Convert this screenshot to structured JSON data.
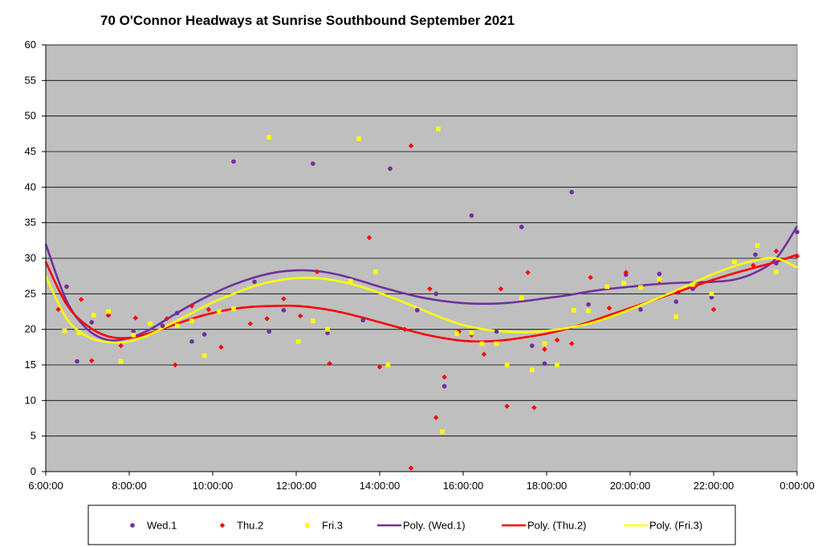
{
  "chart_data": {
    "type": "scatter",
    "title": "70 O'Connor Headways at Sunrise Southbound September 2021",
    "xlabel": "",
    "ylabel": "",
    "x_unit": "hours",
    "xlim": [
      6,
      24
    ],
    "ylim": [
      0,
      60
    ],
    "y_ticks": [
      0,
      5,
      10,
      15,
      20,
      25,
      30,
      35,
      40,
      45,
      50,
      55,
      60
    ],
    "x_ticks": [
      6,
      8,
      10,
      12,
      14,
      16,
      18,
      20,
      22,
      24
    ],
    "x_tick_labels": [
      "6:00:00",
      "8:00:00",
      "10:00:00",
      "12:00:00",
      "14:00:00",
      "16:00:00",
      "18:00:00",
      "20:00:00",
      "22:00:00",
      "0:00:00"
    ],
    "grid": "horizontal",
    "legend_position": "bottom",
    "series": [
      {
        "name": "Wed.1",
        "marker": "circle",
        "color": "#7030A0",
        "points": [
          [
            6.5,
            26.0
          ],
          [
            6.75,
            15.5
          ],
          [
            7.1,
            21.0
          ],
          [
            7.5,
            22.0
          ],
          [
            8.1,
            19.7
          ],
          [
            8.8,
            20.5
          ],
          [
            9.15,
            22.3
          ],
          [
            9.5,
            18.3
          ],
          [
            9.8,
            19.3
          ],
          [
            10.5,
            43.6
          ],
          [
            11.0,
            26.7
          ],
          [
            11.35,
            19.7
          ],
          [
            11.7,
            22.7
          ],
          [
            12.4,
            43.3
          ],
          [
            12.75,
            19.5
          ],
          [
            13.6,
            21.3
          ],
          [
            14.25,
            42.6
          ],
          [
            14.9,
            22.7
          ],
          [
            15.35,
            25.0
          ],
          [
            15.55,
            12.0
          ],
          [
            16.2,
            36.0
          ],
          [
            16.8,
            19.7
          ],
          [
            17.4,
            34.4
          ],
          [
            17.65,
            17.7
          ],
          [
            17.95,
            15.2
          ],
          [
            18.6,
            39.3
          ],
          [
            19.0,
            23.5
          ],
          [
            19.9,
            27.7
          ],
          [
            20.25,
            22.8
          ],
          [
            20.7,
            27.8
          ],
          [
            21.1,
            23.9
          ],
          [
            21.5,
            25.7
          ],
          [
            21.95,
            24.5
          ],
          [
            23.0,
            30.5
          ],
          [
            23.5,
            29.3
          ],
          [
            24.0,
            33.7
          ]
        ]
      },
      {
        "name": "Thu.2",
        "marker": "diamond",
        "color": "#FF0000",
        "points": [
          [
            6.3,
            22.8
          ],
          [
            6.85,
            24.2
          ],
          [
            7.1,
            15.6
          ],
          [
            7.5,
            22.0
          ],
          [
            7.8,
            17.7
          ],
          [
            8.15,
            21.6
          ],
          [
            8.9,
            21.5
          ],
          [
            9.1,
            15.0
          ],
          [
            9.5,
            23.3
          ],
          [
            9.9,
            22.8
          ],
          [
            10.2,
            17.5
          ],
          [
            10.9,
            20.8
          ],
          [
            11.3,
            21.5
          ],
          [
            11.7,
            24.3
          ],
          [
            12.1,
            21.9
          ],
          [
            12.5,
            28.1
          ],
          [
            12.8,
            15.2
          ],
          [
            13.75,
            32.9
          ],
          [
            14.0,
            14.7
          ],
          [
            14.6,
            20.0
          ],
          [
            14.75,
            45.8
          ],
          [
            14.75,
            0.5
          ],
          [
            15.2,
            25.7
          ],
          [
            15.35,
            7.6
          ],
          [
            15.55,
            13.3
          ],
          [
            15.9,
            19.7
          ],
          [
            16.2,
            19.2
          ],
          [
            16.5,
            16.5
          ],
          [
            16.9,
            25.7
          ],
          [
            17.05,
            9.2
          ],
          [
            17.55,
            28.0
          ],
          [
            17.7,
            9.0
          ],
          [
            17.95,
            17.2
          ],
          [
            18.25,
            18.5
          ],
          [
            18.6,
            18.0
          ],
          [
            19.05,
            27.3
          ],
          [
            19.5,
            23.0
          ],
          [
            19.9,
            28.0
          ],
          [
            20.7,
            26.8
          ],
          [
            21.15,
            25.2
          ],
          [
            21.55,
            26.0
          ],
          [
            22.0,
            22.8
          ],
          [
            22.95,
            29.0
          ],
          [
            23.5,
            31.0
          ],
          [
            24.0,
            30.3
          ]
        ]
      },
      {
        "name": "Fri.3",
        "marker": "square",
        "color": "#FFFF00",
        "points": [
          [
            6.45,
            19.8
          ],
          [
            6.8,
            19.5
          ],
          [
            7.15,
            22.0
          ],
          [
            7.5,
            22.5
          ],
          [
            7.8,
            15.5
          ],
          [
            8.1,
            19.2
          ],
          [
            8.5,
            20.8
          ],
          [
            9.15,
            20.5
          ],
          [
            9.5,
            21.2
          ],
          [
            9.8,
            16.3
          ],
          [
            10.15,
            22.5
          ],
          [
            10.5,
            22.9
          ],
          [
            11.35,
            47.0
          ],
          [
            12.05,
            18.3
          ],
          [
            12.4,
            21.2
          ],
          [
            12.75,
            20.0
          ],
          [
            13.3,
            26.8
          ],
          [
            13.5,
            46.8
          ],
          [
            13.9,
            28.1
          ],
          [
            14.2,
            15.0
          ],
          [
            15.4,
            48.2
          ],
          [
            15.5,
            5.6
          ],
          [
            15.85,
            19.4
          ],
          [
            16.2,
            19.5
          ],
          [
            16.45,
            18.0
          ],
          [
            16.8,
            18.0
          ],
          [
            17.05,
            15.0
          ],
          [
            17.4,
            24.4
          ],
          [
            17.65,
            14.3
          ],
          [
            17.95,
            18.0
          ],
          [
            18.25,
            15.0
          ],
          [
            18.65,
            22.7
          ],
          [
            19.0,
            22.6
          ],
          [
            19.45,
            26.0
          ],
          [
            19.85,
            26.5
          ],
          [
            20.25,
            25.9
          ],
          [
            20.7,
            27.0
          ],
          [
            21.1,
            21.8
          ],
          [
            21.5,
            26.3
          ],
          [
            21.95,
            25.0
          ],
          [
            22.5,
            29.5
          ],
          [
            23.05,
            31.8
          ],
          [
            23.5,
            28.1
          ]
        ]
      },
      {
        "name": "Poly. (Wed.1)",
        "type": "line",
        "color": "#7030A0",
        "x": [
          6.0,
          6.5,
          7.0,
          7.5,
          8.0,
          8.5,
          9.0,
          9.5,
          10.0,
          10.5,
          11.0,
          11.5,
          12.0,
          12.5,
          13.0,
          13.5,
          14.0,
          14.5,
          15.0,
          15.5,
          16.0,
          16.5,
          17.0,
          17.5,
          18.0,
          18.5,
          19.0,
          19.5,
          20.0,
          20.5,
          21.0,
          21.5,
          22.0,
          22.5,
          23.0,
          23.5,
          24.0
        ],
        "y": [
          32.0,
          24.0,
          20.0,
          18.5,
          18.8,
          20.0,
          21.8,
          23.5,
          25.0,
          26.3,
          27.3,
          28.0,
          28.3,
          28.2,
          27.7,
          26.9,
          26.0,
          25.2,
          24.5,
          24.0,
          23.7,
          23.6,
          23.7,
          24.0,
          24.4,
          24.8,
          25.3,
          25.7,
          26.0,
          26.3,
          26.5,
          26.6,
          26.7,
          27.0,
          28.0,
          30.0,
          34.5
        ]
      },
      {
        "name": "Poly. (Thu.2)",
        "type": "line",
        "color": "#FF0000",
        "x": [
          6.0,
          6.5,
          7.0,
          7.5,
          8.0,
          8.5,
          9.0,
          9.5,
          10.0,
          10.5,
          11.0,
          11.5,
          12.0,
          12.5,
          13.0,
          13.5,
          14.0,
          14.5,
          15.0,
          15.5,
          16.0,
          16.5,
          17.0,
          17.5,
          18.0,
          18.5,
          19.0,
          19.5,
          20.0,
          20.5,
          21.0,
          21.5,
          22.0,
          22.5,
          23.0,
          23.5,
          24.0
        ],
        "y": [
          29.5,
          23.5,
          20.5,
          19.0,
          18.8,
          19.5,
          20.5,
          21.5,
          22.3,
          22.9,
          23.2,
          23.3,
          23.3,
          23.0,
          22.5,
          21.8,
          21.0,
          20.2,
          19.4,
          18.8,
          18.4,
          18.3,
          18.5,
          18.9,
          19.4,
          20.1,
          21.0,
          22.0,
          23.0,
          24.0,
          25.0,
          26.0,
          27.0,
          27.9,
          28.7,
          29.5,
          30.5
        ]
      },
      {
        "name": "Poly. (Fri.3)",
        "type": "line",
        "color": "#FFFF00",
        "x": [
          6.0,
          6.5,
          7.0,
          7.5,
          8.0,
          8.5,
          9.0,
          9.5,
          10.0,
          10.5,
          11.0,
          11.5,
          12.0,
          12.5,
          13.0,
          13.5,
          14.0,
          14.5,
          15.0,
          15.5,
          16.0,
          16.5,
          17.0,
          17.5,
          18.0,
          18.5,
          19.0,
          19.5,
          20.0,
          20.5,
          21.0,
          21.5,
          22.0,
          22.5,
          23.0,
          23.5,
          24.0
        ],
        "y": [
          27.5,
          21.5,
          19.0,
          18.2,
          18.3,
          19.3,
          20.8,
          22.3,
          23.8,
          25.0,
          26.1,
          26.8,
          27.2,
          27.2,
          26.8,
          26.1,
          25.1,
          24.0,
          22.8,
          21.6,
          20.6,
          20.0,
          19.7,
          19.6,
          19.8,
          20.2,
          20.8,
          21.7,
          22.8,
          24.0,
          25.2,
          26.5,
          27.8,
          28.9,
          29.7,
          30.0,
          28.7
        ]
      }
    ]
  }
}
